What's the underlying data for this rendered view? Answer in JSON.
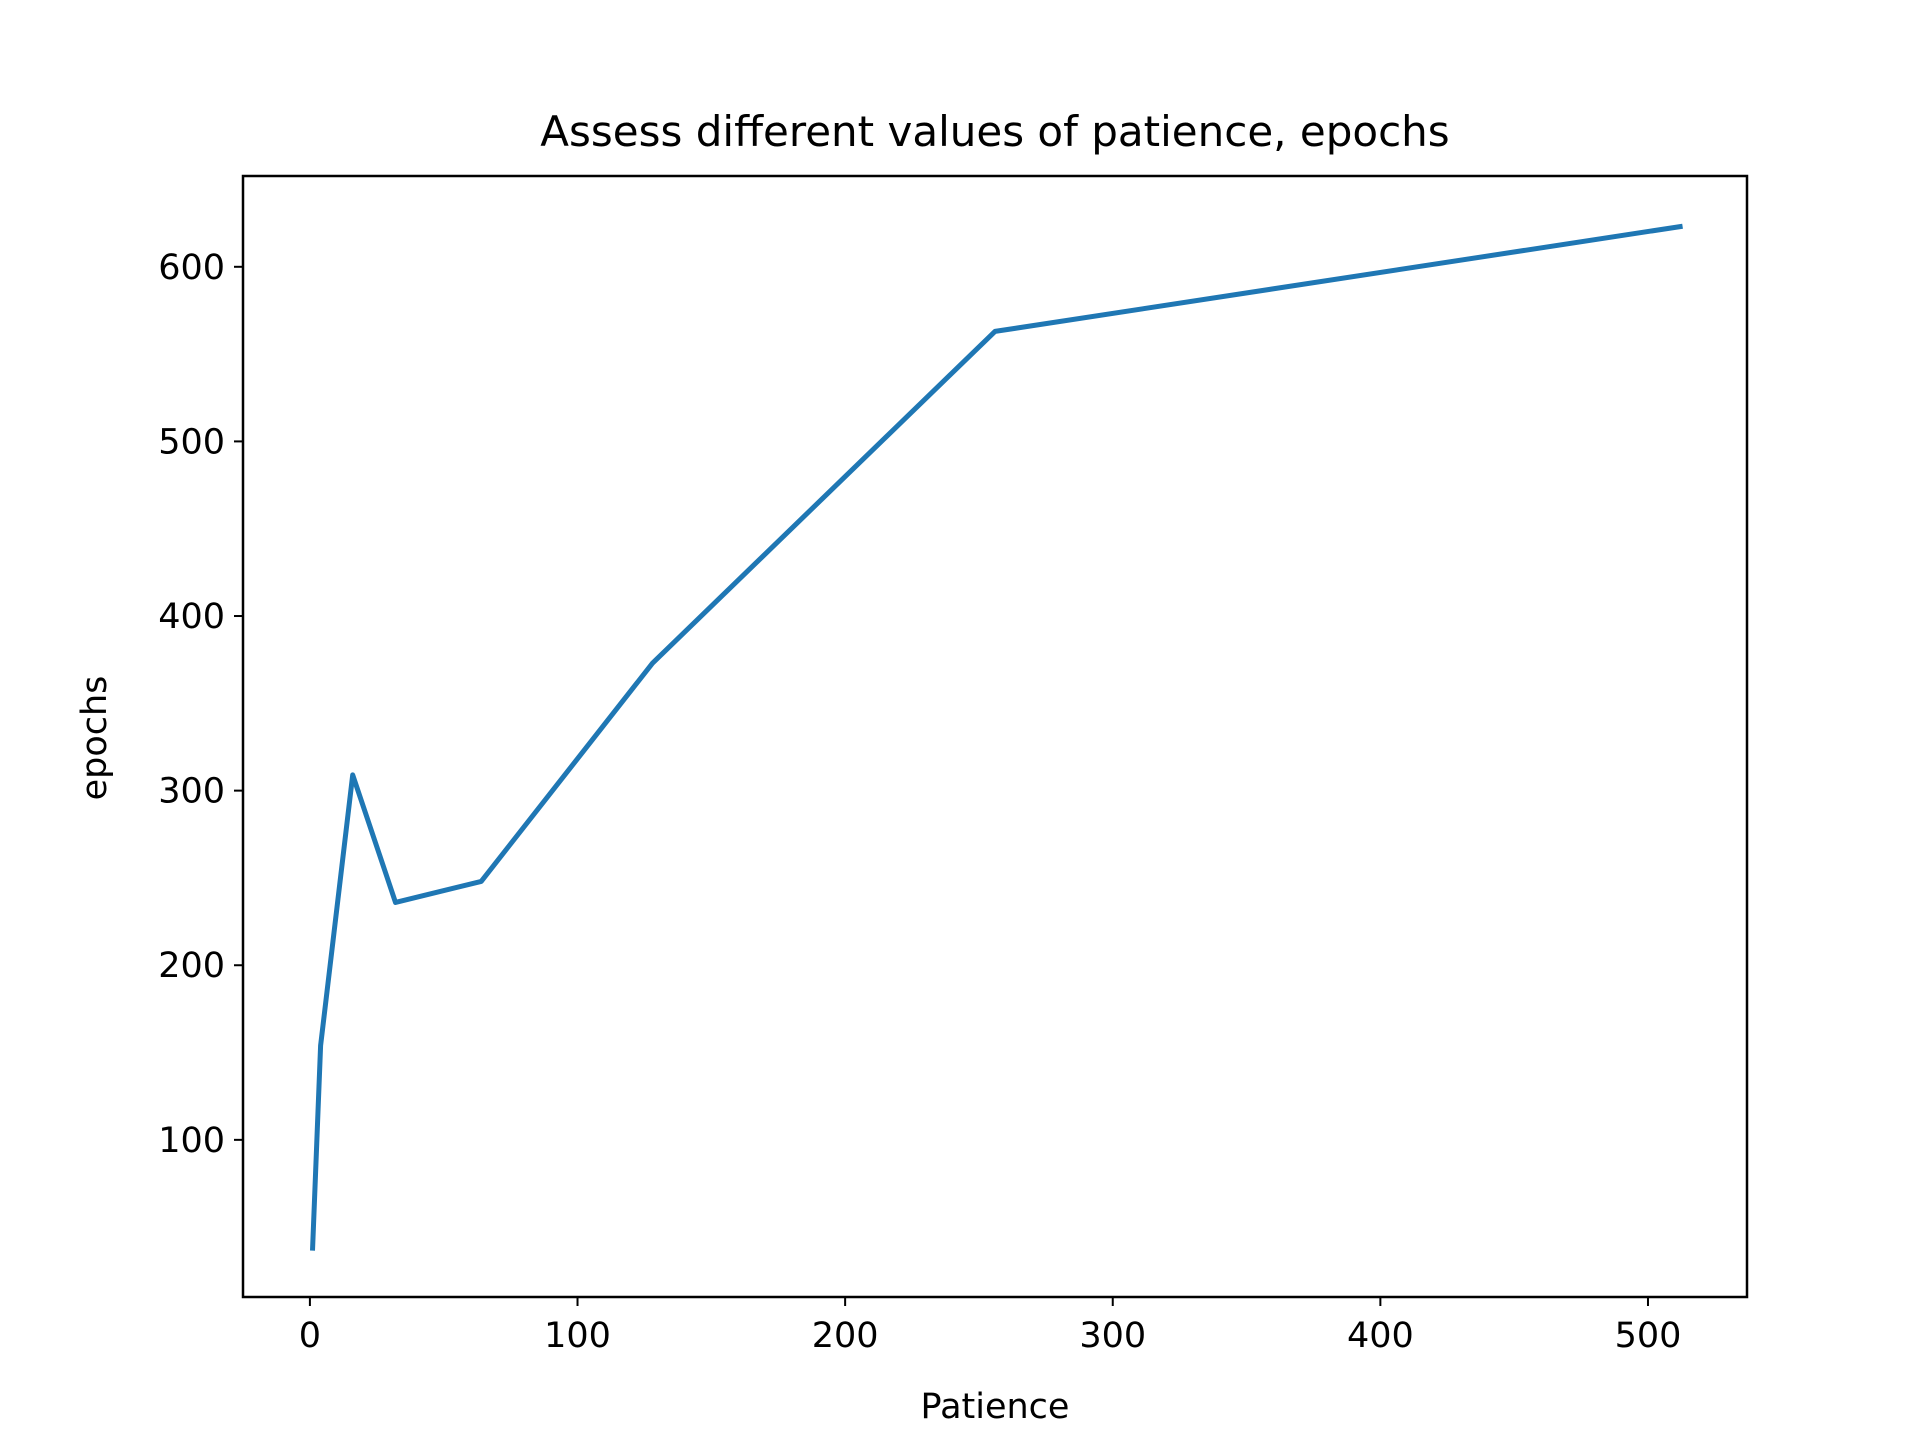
{
  "chart_data": {
    "type": "line",
    "title": "Assess different values of patience, epochs",
    "xlabel": "Patience",
    "ylabel": "epochs",
    "xlim": [
      -25,
      537
    ],
    "ylim": [
      10,
      652
    ],
    "xticks": [
      0,
      100,
      200,
      300,
      400,
      500
    ],
    "xtick_labels": [
      "0",
      "100",
      "200",
      "300",
      "400",
      "500"
    ],
    "yticks": [
      100,
      200,
      300,
      400,
      500,
      600
    ],
    "ytick_labels": [
      "100",
      "200",
      "300",
      "400",
      "500",
      "600"
    ],
    "grid": false,
    "line_color": "#1f77b4",
    "series": [
      {
        "x": [
          1,
          4,
          16,
          32,
          64,
          128,
          256,
          512
        ],
        "y": [
          38,
          154,
          309,
          236,
          248,
          373,
          563,
          623
        ]
      }
    ]
  }
}
